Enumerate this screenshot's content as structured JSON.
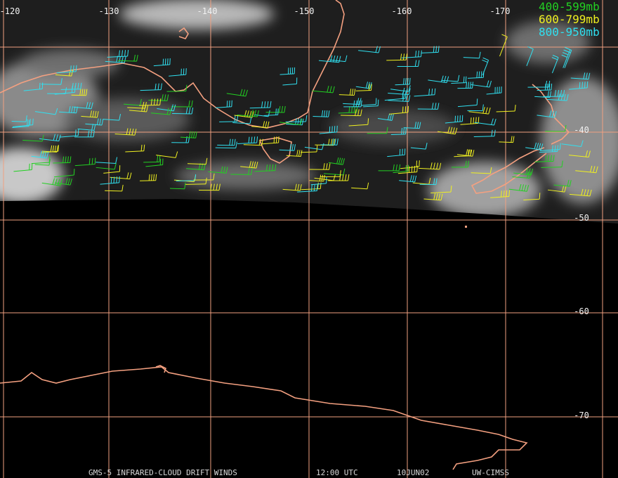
{
  "map": {
    "lon_labels": [
      "-120",
      "-130",
      "-140",
      "-150",
      "-160",
      "-170"
    ],
    "lat_labels": [
      "-40",
      "-50",
      "-60",
      "-70"
    ],
    "legend": [
      {
        "label": "400-599mb",
        "color": "#22d022"
      },
      {
        "label": "600-799mb",
        "color": "#f0f020"
      },
      {
        "label": "800-950mb",
        "color": "#30e0f0"
      }
    ],
    "footer": [
      "GMS-5 INFRARED-CLOUD DRIFT WINDS",
      "12:00 UTC",
      "10JUN02",
      "UW-CIMSS"
    ]
  }
}
